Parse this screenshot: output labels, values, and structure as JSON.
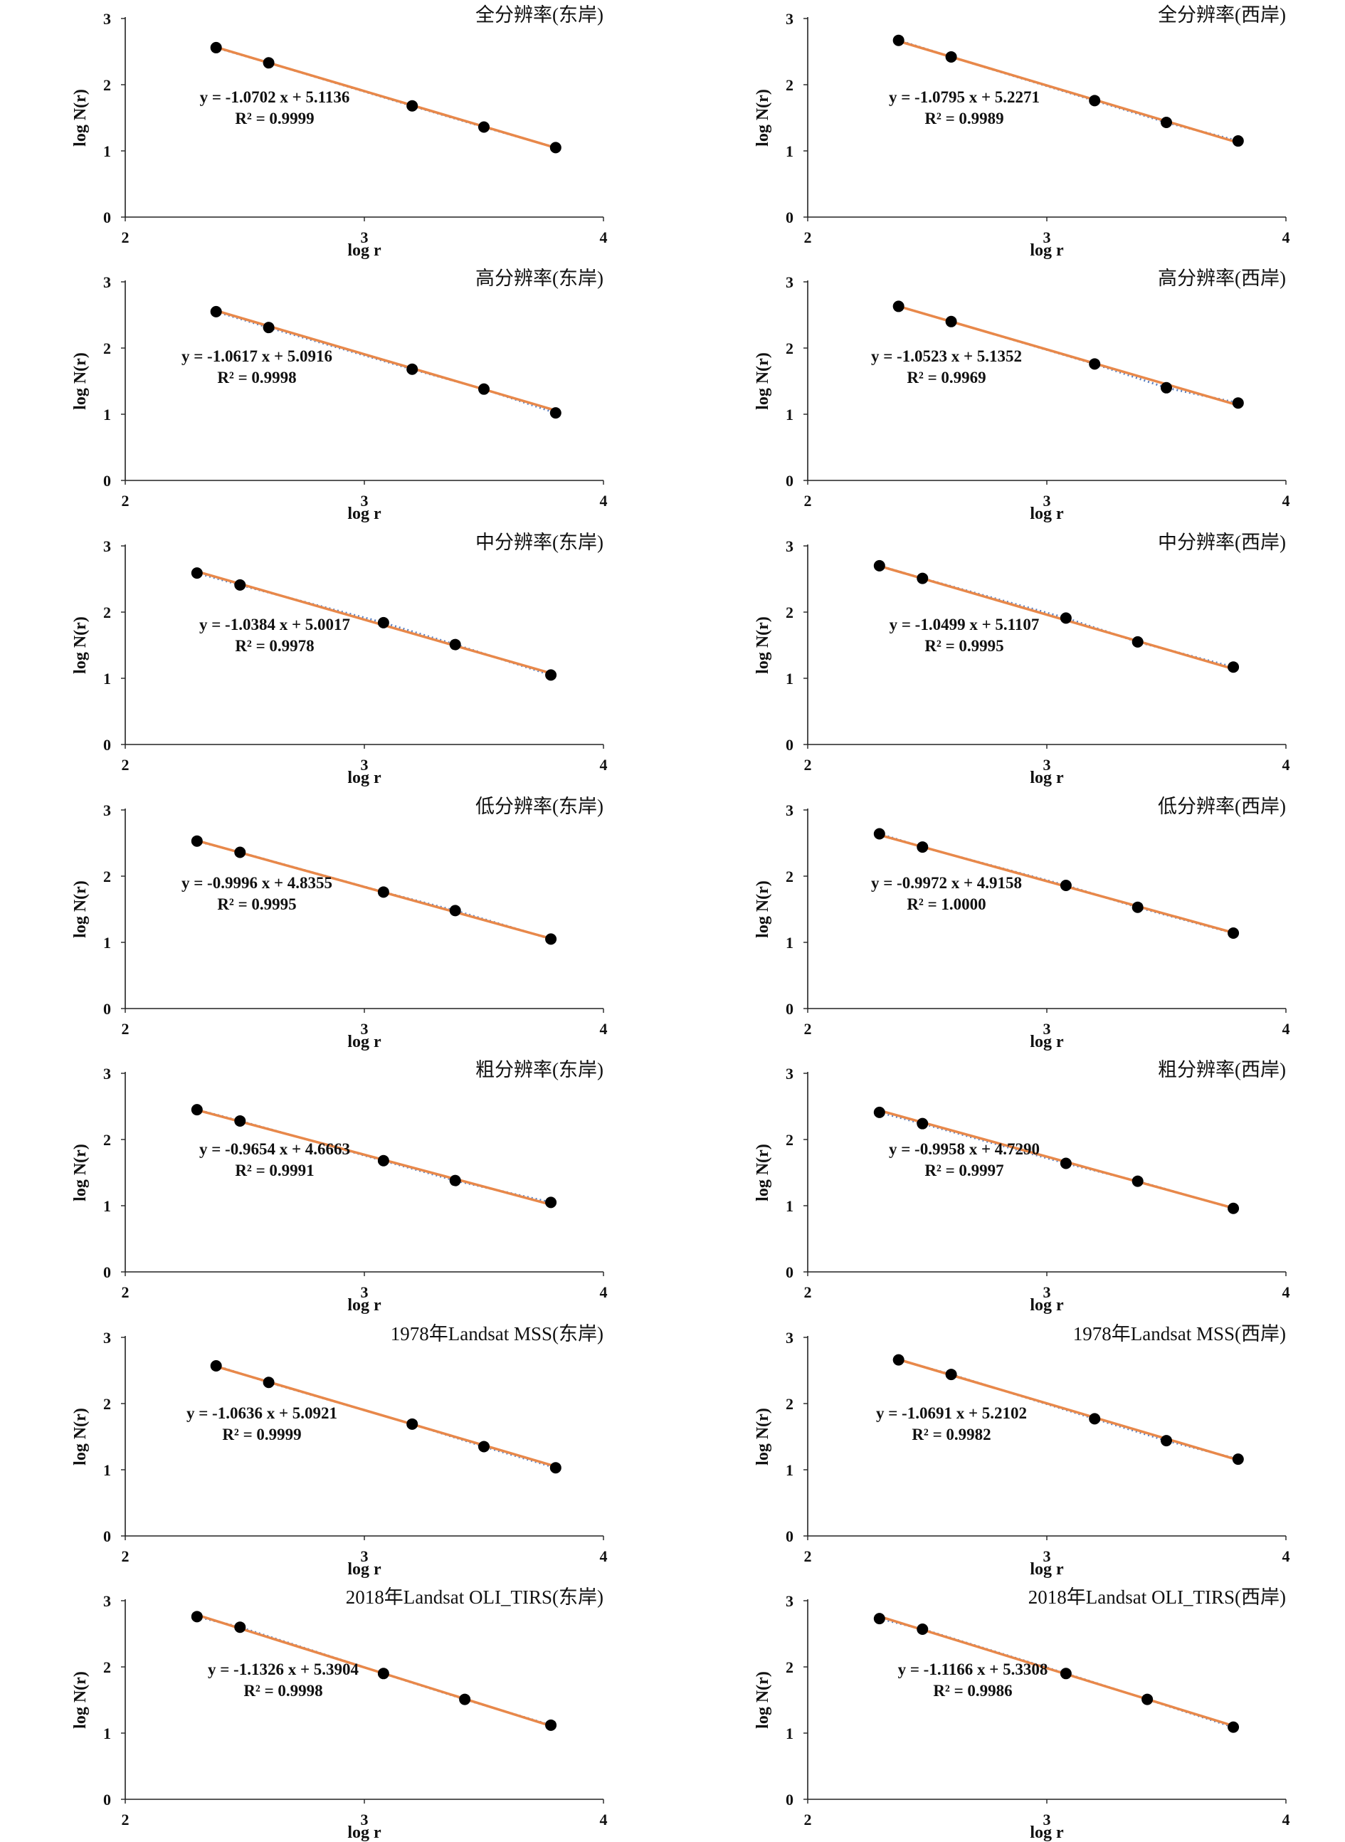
{
  "figure": {
    "axes": {
      "xlabel": "log r",
      "ylabel": "log N(r)",
      "xlim": [
        2,
        4
      ],
      "ylim": [
        0,
        3
      ],
      "xticks": [
        2,
        3,
        4
      ],
      "yticks": [
        0,
        1,
        2,
        3
      ]
    },
    "style": {
      "point_color": "#000000",
      "fit_line_color": "#E8884A",
      "trend_dotted_color": "#5B7FBF"
    }
  },
  "chart_data": [
    {
      "type": "scatter",
      "title": "全分辨率(东岸)",
      "xlabel": "log r",
      "ylabel": "log N(r)",
      "xlim": [
        2,
        4
      ],
      "ylim": [
        0,
        3
      ],
      "x": [
        2.38,
        2.6,
        3.2,
        3.5,
        3.8
      ],
      "y": [
        2.56,
        2.33,
        1.68,
        1.36,
        1.05
      ],
      "equation": "y = -1.0702 x + 5.1136",
      "r2": "R² = 0.9999",
      "slope": -1.0702,
      "intercept": 5.1136
    },
    {
      "type": "scatter",
      "title": "全分辨率(西岸)",
      "xlabel": "log r",
      "ylabel": "log N(r)",
      "xlim": [
        2,
        4
      ],
      "ylim": [
        0,
        3
      ],
      "x": [
        2.38,
        2.6,
        3.2,
        3.5,
        3.8
      ],
      "y": [
        2.67,
        2.42,
        1.76,
        1.43,
        1.15
      ],
      "equation": "y = -1.0795 x + 5.2271",
      "r2": "R² = 0.9989",
      "slope": -1.0795,
      "intercept": 5.2271
    },
    {
      "type": "scatter",
      "title": "高分辨率(东岸)",
      "xlabel": "log r",
      "ylabel": "log N(r)",
      "xlim": [
        2,
        4
      ],
      "ylim": [
        0,
        3
      ],
      "x": [
        2.38,
        2.6,
        3.2,
        3.5,
        3.8
      ],
      "y": [
        2.55,
        2.31,
        1.68,
        1.38,
        1.02
      ],
      "equation": "y = -1.0617 x + 5.0916",
      "r2": "R² = 0.9998",
      "slope": -1.0617,
      "intercept": 5.0916
    },
    {
      "type": "scatter",
      "title": "高分辨率(西岸)",
      "xlabel": "log r",
      "ylabel": "log N(r)",
      "xlim": [
        2,
        4
      ],
      "ylim": [
        0,
        3
      ],
      "x": [
        2.38,
        2.6,
        3.2,
        3.5,
        3.8
      ],
      "y": [
        2.63,
        2.4,
        1.76,
        1.4,
        1.17
      ],
      "equation": "y = -1.0523 x + 5.1352",
      "r2": "R² = 0.9969",
      "slope": -1.0523,
      "intercept": 5.1352
    },
    {
      "type": "scatter",
      "title": "中分辨率(东岸)",
      "xlabel": "log r",
      "ylabel": "log N(r)",
      "xlim": [
        2,
        4
      ],
      "ylim": [
        0,
        3
      ],
      "x": [
        2.3,
        2.48,
        3.08,
        3.38,
        3.78
      ],
      "y": [
        2.59,
        2.41,
        1.84,
        1.51,
        1.05
      ],
      "equation": "y = -1.0384 x + 5.0017",
      "r2": "R² = 0.9978",
      "slope": -1.0384,
      "intercept": 5.0017
    },
    {
      "type": "scatter",
      "title": "中分辨率(西岸)",
      "xlabel": "log r",
      "ylabel": "log N(r)",
      "xlim": [
        2,
        4
      ],
      "ylim": [
        0,
        3
      ],
      "x": [
        2.3,
        2.48,
        3.08,
        3.38,
        3.78
      ],
      "y": [
        2.7,
        2.51,
        1.91,
        1.55,
        1.17
      ],
      "equation": "y = -1.0499 x + 5.1107",
      "r2": "R² = 0.9995",
      "slope": -1.0499,
      "intercept": 5.1107
    },
    {
      "type": "scatter",
      "title": "低分辨率(东岸)",
      "xlabel": "log r",
      "ylabel": "log N(r)",
      "xlim": [
        2,
        4
      ],
      "ylim": [
        0,
        3
      ],
      "x": [
        2.3,
        2.48,
        3.08,
        3.38,
        3.78
      ],
      "y": [
        2.53,
        2.36,
        1.76,
        1.48,
        1.05
      ],
      "equation": "y = -0.9996 x + 4.8355",
      "r2": "R² = 0.9995",
      "slope": -0.9996,
      "intercept": 4.8355
    },
    {
      "type": "scatter",
      "title": "低分辨率(西岸)",
      "xlabel": "log r",
      "ylabel": "log N(r)",
      "xlim": [
        2,
        4
      ],
      "ylim": [
        0,
        3
      ],
      "x": [
        2.3,
        2.48,
        3.08,
        3.38,
        3.78
      ],
      "y": [
        2.64,
        2.44,
        1.86,
        1.53,
        1.14
      ],
      "equation": "y = -0.9972 x + 4.9158",
      "r2": "R² = 1.0000",
      "slope": -0.9972,
      "intercept": 4.9158
    },
    {
      "type": "scatter",
      "title": "粗分辨率(东岸)",
      "xlabel": "log r",
      "ylabel": "log N(r)",
      "xlim": [
        2,
        4
      ],
      "ylim": [
        0,
        3
      ],
      "x": [
        2.3,
        2.48,
        3.08,
        3.38,
        3.78
      ],
      "y": [
        2.45,
        2.28,
        1.68,
        1.38,
        1.05
      ],
      "equation": "y = -0.9654 x + 4.6663",
      "r2": "R² = 0.9991",
      "slope": -0.9654,
      "intercept": 4.6663
    },
    {
      "type": "scatter",
      "title": "粗分辨率(西岸)",
      "xlabel": "log r",
      "ylabel": "log N(r)",
      "xlim": [
        2,
        4
      ],
      "ylim": [
        0,
        3
      ],
      "x": [
        2.3,
        2.48,
        3.08,
        3.38,
        3.78
      ],
      "y": [
        2.41,
        2.24,
        1.64,
        1.37,
        0.96
      ],
      "equation": "y = -0.9958 x + 4.7290",
      "r2": "R² = 0.9997",
      "slope": -0.9958,
      "intercept": 4.729
    },
    {
      "type": "scatter",
      "title": "1978年Landsat MSS(东岸)",
      "xlabel": "log r",
      "ylabel": "log N(r)",
      "xlim": [
        2,
        4
      ],
      "ylim": [
        0,
        3
      ],
      "x": [
        2.38,
        2.6,
        3.2,
        3.5,
        3.8
      ],
      "y": [
        2.57,
        2.32,
        1.69,
        1.35,
        1.03
      ],
      "equation": "y = -1.0636 x + 5.0921",
      "r2": "R² = 0.9999",
      "slope": -1.0636,
      "intercept": 5.0921
    },
    {
      "type": "scatter",
      "title": "1978年Landsat MSS(西岸)",
      "xlabel": "log r",
      "ylabel": "log N(r)",
      "xlim": [
        2,
        4
      ],
      "ylim": [
        0,
        3
      ],
      "x": [
        2.38,
        2.6,
        3.2,
        3.5,
        3.8
      ],
      "y": [
        2.66,
        2.44,
        1.77,
        1.44,
        1.16
      ],
      "equation": "y = -1.0691 x + 5.2102",
      "r2": "R² = 0.9982",
      "slope": -1.0691,
      "intercept": 5.2102
    },
    {
      "type": "scatter",
      "title": "2018年Landsat OLI_TIRS(东岸)",
      "xlabel": "log r",
      "ylabel": "log N(r)",
      "xlim": [
        2,
        4
      ],
      "ylim": [
        0,
        3
      ],
      "x": [
        2.3,
        2.48,
        3.08,
        3.42,
        3.78
      ],
      "y": [
        2.76,
        2.6,
        1.9,
        1.51,
        1.12
      ],
      "equation": "y = -1.1326 x + 5.3904",
      "r2": "R² = 0.9998",
      "slope": -1.1326,
      "intercept": 5.3904
    },
    {
      "type": "scatter",
      "title": "2018年Landsat OLI_TIRS(西岸)",
      "xlabel": "log r",
      "ylabel": "log N(r)",
      "xlim": [
        2,
        4
      ],
      "ylim": [
        0,
        3
      ],
      "x": [
        2.3,
        2.48,
        3.08,
        3.42,
        3.78
      ],
      "y": [
        2.73,
        2.57,
        1.9,
        1.51,
        1.09
      ],
      "equation": "y = -1.1166 x + 5.3308",
      "r2": "R² = 0.9986",
      "slope": -1.1166,
      "intercept": 5.3308
    }
  ]
}
